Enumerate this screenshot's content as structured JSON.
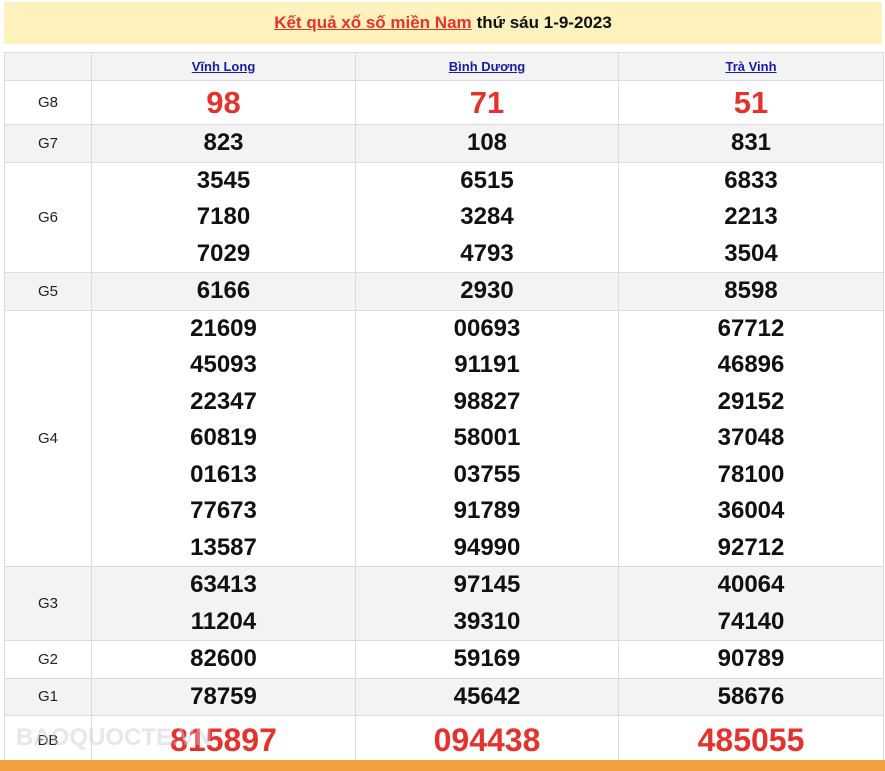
{
  "title": {
    "link": "Kết quả xổ số miền Nam",
    "rest": "thứ sáu 1-9-2023"
  },
  "provinces": [
    "Vĩnh Long",
    "Bình Dương",
    "Trà Vinh"
  ],
  "prizes": [
    {
      "label": "G8",
      "values": [
        [
          "98"
        ],
        [
          "71"
        ],
        [
          "51"
        ]
      ]
    },
    {
      "label": "G7",
      "values": [
        [
          "823"
        ],
        [
          "108"
        ],
        [
          "831"
        ]
      ]
    },
    {
      "label": "G6",
      "values": [
        [
          "3545",
          "7180",
          "7029"
        ],
        [
          "6515",
          "3284",
          "4793"
        ],
        [
          "6833",
          "2213",
          "3504"
        ]
      ]
    },
    {
      "label": "G5",
      "values": [
        [
          "6166"
        ],
        [
          "2930"
        ],
        [
          "8598"
        ]
      ]
    },
    {
      "label": "G4",
      "values": [
        [
          "21609",
          "45093",
          "22347",
          "60819",
          "01613",
          "77673",
          "13587"
        ],
        [
          "00693",
          "91191",
          "98827",
          "58001",
          "03755",
          "91789",
          "94990"
        ],
        [
          "67712",
          "46896",
          "29152",
          "37048",
          "78100",
          "36004",
          "92712"
        ]
      ]
    },
    {
      "label": "G3",
      "values": [
        [
          "63413",
          "11204"
        ],
        [
          "97145",
          "39310"
        ],
        [
          "40064",
          "74140"
        ]
      ]
    },
    {
      "label": "G2",
      "values": [
        [
          "82600"
        ],
        [
          "59169"
        ],
        [
          "90789"
        ]
      ]
    },
    {
      "label": "G1",
      "values": [
        [
          "78759"
        ],
        [
          "45642"
        ],
        [
          "58676"
        ]
      ]
    },
    {
      "label": "ĐB",
      "values": [
        [
          "815897"
        ],
        [
          "094438"
        ],
        [
          "485055"
        ]
      ]
    }
  ],
  "watermark": "BAOQUOCTE.VN",
  "colors": {
    "accent_red": "#e5322d",
    "title_bg": "#fdf1bd",
    "footer": "#f0a040",
    "link": "#1a1aa6"
  }
}
